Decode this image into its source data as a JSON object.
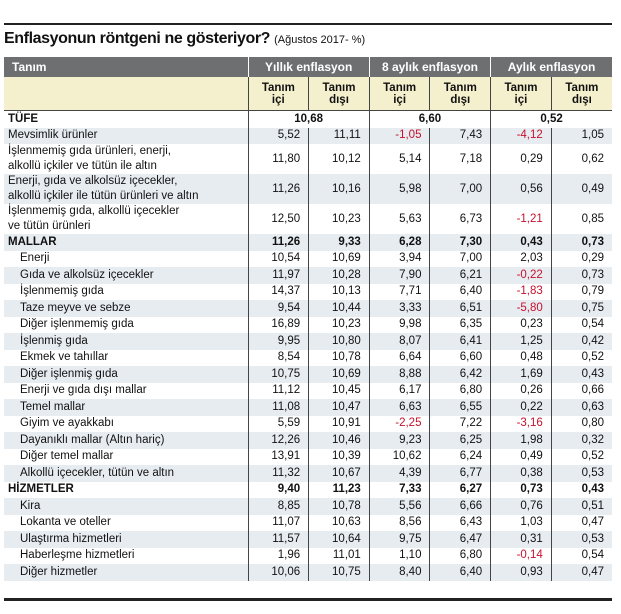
{
  "header": {
    "title": "Enflasyonun röntgeni ne gösteriyor?",
    "subtitle": "(Ağustos 2017- %)"
  },
  "table": {
    "label_header": "Tanım",
    "groups": [
      "Yıllık enflasyon",
      "8 aylık enflasyon",
      "Aylık enflasyon"
    ],
    "subheaders": [
      "Tanım\niçi",
      "Tanım\ndışı",
      "Tanım\niçi",
      "Tanım\ndışı",
      "Tanım\niçi",
      "Tanım\ndışı"
    ],
    "total": {
      "label": "TÜFE",
      "values": [
        "10,68",
        "6,60",
        "0,52"
      ]
    },
    "rows": [
      {
        "label": "Mevsimlik ürünler",
        "values": [
          "5,52",
          "11,11",
          "-1,05",
          "7,43",
          "-4,12",
          "1,05"
        ]
      },
      {
        "label": "İşlenmemiş gıda ürünleri, enerji,\nalkollü içkiler ve tütün ile altın",
        "values": [
          "11,80",
          "10,12",
          "5,14",
          "7,18",
          "0,29",
          "0,62"
        ]
      },
      {
        "label": "Enerji, gıda ve alkolsüz içecekler,\nalkollü içkiler ile tütün ürünleri ve altın",
        "values": [
          "11,26",
          "10,16",
          "5,98",
          "7,00",
          "0,56",
          "0,49"
        ]
      },
      {
        "label": "İşlenmemiş gıda, alkollü içecekler\nve tütün ürünleri",
        "values": [
          "12,50",
          "10,23",
          "5,63",
          "6,73",
          "-1,21",
          "0,85"
        ]
      },
      {
        "label": "MALLAR",
        "values": [
          "11,26",
          "9,33",
          "6,28",
          "7,30",
          "0,43",
          "0,73"
        ]
      },
      {
        "label": "Enerji",
        "values": [
          "10,54",
          "10,69",
          "3,94",
          "7,00",
          "2,03",
          "0,29"
        ]
      },
      {
        "label": "Gıda ve alkolsüz içecekler",
        "values": [
          "11,97",
          "10,28",
          "7,90",
          "6,21",
          "-0,22",
          "0,73"
        ]
      },
      {
        "label": "İşlenmemiş gıda",
        "values": [
          "14,37",
          "10,13",
          "7,71",
          "6,40",
          "-1,83",
          "0,79"
        ]
      },
      {
        "label": "Taze meyve ve sebze",
        "values": [
          "9,54",
          "10,44",
          "3,33",
          "6,51",
          "-5,80",
          "0,75"
        ]
      },
      {
        "label": "Diğer işlenmemiş gıda",
        "values": [
          "16,89",
          "10,23",
          "9,98",
          "6,35",
          "0,23",
          "0,54"
        ]
      },
      {
        "label": "İşlenmiş gıda",
        "values": [
          "9,95",
          "10,80",
          "8,07",
          "6,41",
          "1,25",
          "0,42"
        ]
      },
      {
        "label": "Ekmek ve tahıllar",
        "values": [
          "8,54",
          "10,78",
          "6,64",
          "6,60",
          "0,48",
          "0,52"
        ]
      },
      {
        "label": "Diğer işlenmiş gıda",
        "values": [
          "10,75",
          "10,69",
          "8,88",
          "6,42",
          "1,69",
          "0,43"
        ]
      },
      {
        "label": "Enerji ve gıda dışı mallar",
        "values": [
          "11,12",
          "10,45",
          "6,17",
          "6,80",
          "0,26",
          "0,66"
        ]
      },
      {
        "label": "Temel mallar",
        "values": [
          "11,08",
          "10,47",
          "6,63",
          "6,55",
          "0,22",
          "0,63"
        ]
      },
      {
        "label": "Giyim ve ayakkabı",
        "values": [
          "5,59",
          "10,91",
          "-2,25",
          "7,22",
          "-3,16",
          "0,80"
        ]
      },
      {
        "label": "Dayanıklı mallar (Altın hariç)",
        "values": [
          "12,26",
          "10,46",
          "9,23",
          "6,25",
          "1,98",
          "0,32"
        ]
      },
      {
        "label": "Diğer temel mallar",
        "values": [
          "13,91",
          "10,39",
          "10,62",
          "6,24",
          "0,49",
          "0,52"
        ]
      },
      {
        "label": "Alkollü içecekler, tütün ve altın",
        "values": [
          "11,32",
          "10,67",
          "4,39",
          "6,77",
          "0,38",
          "0,53"
        ]
      },
      {
        "label": "HİZMETLER",
        "values": [
          "9,40",
          "11,23",
          "7,33",
          "6,27",
          "0,73",
          "0,43"
        ]
      },
      {
        "label": "Kira",
        "values": [
          "8,85",
          "10,78",
          "5,56",
          "6,66",
          "0,76",
          "0,51"
        ]
      },
      {
        "label": "Lokanta ve oteller",
        "values": [
          "11,07",
          "10,63",
          "8,56",
          "6,43",
          "1,03",
          "0,47"
        ]
      },
      {
        "label": "Ulaştırma hizmetleri",
        "values": [
          "11,57",
          "10,64",
          "9,75",
          "6,47",
          "0,31",
          "0,53"
        ]
      },
      {
        "label": "Haberleşme hizmetleri",
        "values": [
          "1,96",
          "11,01",
          "1,10",
          "6,80",
          "-0,14",
          "0,54"
        ]
      },
      {
        "label": "Diğer hizmetler",
        "values": [
          "10,06",
          "10,75",
          "8,40",
          "6,40",
          "0,93",
          "0,47"
        ]
      }
    ]
  }
}
